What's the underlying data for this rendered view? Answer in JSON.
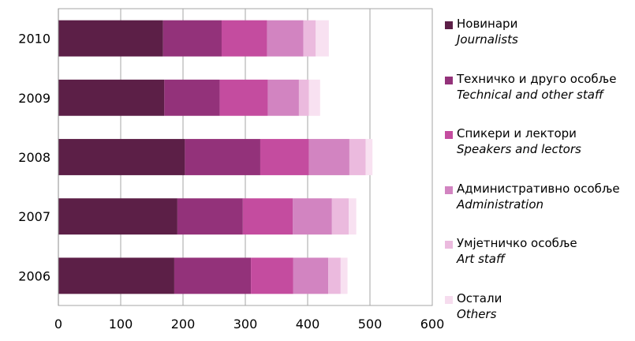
{
  "chart_data": {
    "type": "bar",
    "orientation": "horizontal",
    "stacked": true,
    "categories": [
      "2010",
      "2009",
      "2008",
      "2007",
      "2006"
    ],
    "series": [
      {
        "name": "Новинари",
        "name_en": "Journalists",
        "color": "#5c1f47",
        "values": [
          168,
          170,
          203,
          191,
          186
        ]
      },
      {
        "name": "Техничко и друго особље",
        "name_en": "Technical and other staff",
        "color": "#93327a",
        "values": [
          94,
          89,
          121,
          105,
          123
        ]
      },
      {
        "name": "Спикери и лектори",
        "name_en": "Speakers and lectors",
        "color": "#c44c9f",
        "values": [
          73,
          77,
          78,
          80,
          68
        ]
      },
      {
        "name": "Административно особље",
        "name_en": "Administration",
        "color": "#d284c1",
        "values": [
          58,
          50,
          65,
          63,
          56
        ]
      },
      {
        "name": "Умјетничко особље",
        "name_en": "Art staff",
        "color": "#ebbade",
        "values": [
          20,
          16,
          26,
          27,
          20
        ]
      },
      {
        "name": "Остали",
        "name_en": "Others",
        "color": "#f8e1f1",
        "values": [
          21,
          18,
          11,
          12,
          11
        ]
      }
    ],
    "xlim": [
      0,
      600
    ],
    "xticks": [
      "0",
      "100",
      "200",
      "300",
      "400",
      "500",
      "600"
    ],
    "grid": true,
    "legend_position": "right"
  }
}
